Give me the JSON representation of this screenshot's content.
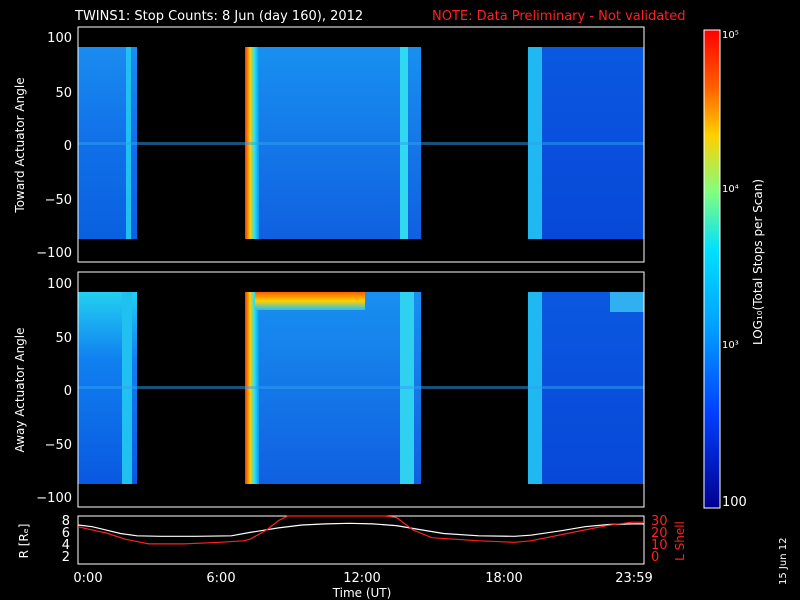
{
  "header": {
    "title": "TWINS1: Stop Counts:  8 Jun (day 160), 2012",
    "note": "NOTE: Data Preliminary - Not validated"
  },
  "date_stamp": "15 Jun 12",
  "chart_data": [
    {
      "type": "heatmap",
      "ylabel": "Toward Actuator Angle",
      "ylim": [
        -110,
        110
      ],
      "yticks": [
        "100",
        "50",
        "0",
        "−50",
        "−100"
      ],
      "data_blocks_ut_hours": [
        [
          0.0,
          2.2
        ],
        [
          7.1,
          14.3
        ],
        [
          19.0,
          24.0
        ]
      ],
      "angle_range_deg": [
        -90,
        90
      ]
    },
    {
      "type": "heatmap",
      "ylabel": "Away Actuator Angle",
      "ylim": [
        -110,
        110
      ],
      "yticks": [
        "100",
        "50",
        "0",
        "−50",
        "−100"
      ],
      "data_blocks_ut_hours": [
        [
          0.0,
          2.2
        ],
        [
          7.1,
          14.3
        ],
        [
          19.0,
          24.0
        ]
      ],
      "angle_range_deg": [
        -90,
        90
      ]
    },
    {
      "type": "line",
      "ylabel_left": "R [Rₑ]",
      "ylabel_right": "L Shell",
      "xlabel": "Time (UT)",
      "xticks": [
        "0:00",
        "6:00",
        "12:00",
        "18:00",
        "23:59"
      ],
      "xlim_hours": [
        0,
        24
      ],
      "left_yticks": [
        "8",
        "6",
        "4",
        "2"
      ],
      "right_yticks": [
        "30",
        "20",
        "10",
        "0"
      ],
      "series": [
        {
          "name": "R",
          "color": "#ffffff",
          "x": [
            0,
            0.6,
            1.2,
            1.8,
            2.5,
            3.5,
            5.0,
            6.5,
            7.3,
            8.5,
            9.5,
            10.5,
            11.5,
            12.5,
            13.5,
            14.5,
            15.5,
            17.0,
            18.5,
            19.2,
            20.5,
            21.5,
            22.5,
            23.5,
            24.0
          ],
          "values": [
            6.9,
            6.6,
            6.0,
            5.4,
            5.0,
            4.9,
            4.9,
            5.0,
            5.6,
            6.4,
            6.9,
            7.1,
            7.2,
            7.1,
            6.8,
            6.1,
            5.4,
            5.0,
            4.9,
            5.1,
            5.9,
            6.6,
            7.0,
            7.1,
            7.1
          ]
        },
        {
          "name": "L",
          "color": "#ff2020",
          "axis": "right",
          "x": [
            0,
            0.6,
            1.2,
            2.0,
            3.0,
            4.5,
            6.0,
            7.0,
            7.3,
            8.0,
            8.5,
            8.9,
            13.0,
            13.5,
            14.2,
            15.0,
            17.0,
            18.5,
            19.2,
            20.5,
            21.5,
            22.5,
            23.5,
            24.0
          ],
          "values": [
            24,
            22,
            20,
            16,
            13,
            13,
            14,
            15,
            16,
            22,
            28,
            33,
            33,
            30,
            22,
            17,
            15,
            14,
            15,
            19,
            22,
            25,
            27,
            27
          ]
        }
      ]
    }
  ],
  "colorbar": {
    "label": "LOG₁₀(Total Stops per Scan)",
    "ticks": [
      "10⁵",
      "10⁴",
      "10³",
      "100"
    ],
    "colors": [
      "#ff0000",
      "#ff8000",
      "#ffff00",
      "#00ffff",
      "#0080ff",
      "#0000a0"
    ]
  }
}
